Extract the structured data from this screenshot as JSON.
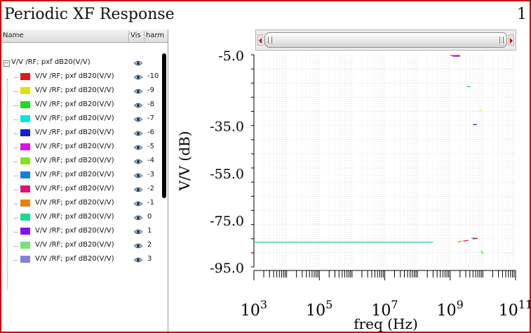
{
  "window": {
    "title": "Periodic XF Response",
    "page_number": "1"
  },
  "table": {
    "columns": [
      "Name",
      "Vis",
      "harm"
    ],
    "group_label": "V/V /RF; pxf dB20(V/V)",
    "visible_icon": "eye-icon",
    "rows": [
      {
        "label": "V/V /RF; pxf dB20(V/V)",
        "harm": "-10",
        "color": "#e8141c"
      },
      {
        "label": "V/V /RF; pxf dB20(V/V)",
        "harm": "-9",
        "color": "#e0e010"
      },
      {
        "label": "V/V /RF; pxf dB20(V/V)",
        "harm": "-8",
        "color": "#18e018"
      },
      {
        "label": "V/V /RF; pxf dB20(V/V)",
        "harm": "-7",
        "color": "#10e0e0"
      },
      {
        "label": "V/V /RF; pxf dB20(V/V)",
        "harm": "-6",
        "color": "#1020d8"
      },
      {
        "label": "V/V /RF; pxf dB20(V/V)",
        "harm": "-5",
        "color": "#e010e0"
      },
      {
        "label": "V/V /RF; pxf dB20(V/V)",
        "harm": "-4",
        "color": "#88e020"
      },
      {
        "label": "V/V /RF; pxf dB20(V/V)",
        "harm": "-3",
        "color": "#1080e0"
      },
      {
        "label": "V/V /RF; pxf dB20(V/V)",
        "harm": "-2",
        "color": "#e0107a"
      },
      {
        "label": "V/V /RF; pxf dB20(V/V)",
        "harm": "-1",
        "color": "#e88010"
      },
      {
        "label": "V/V /RF; pxf dB20(V/V)",
        "harm": "0",
        "color": "#10e088"
      },
      {
        "label": "V/V /RF; pxf dB20(V/V)",
        "harm": "1",
        "color": "#8a10f0"
      },
      {
        "label": "V/V /RF; pxf dB20(V/V)",
        "harm": "2",
        "color": "#78e078"
      },
      {
        "label": "V/V /RF; pxf dB20(V/V)",
        "harm": "3",
        "color": "#8080e0"
      }
    ]
  },
  "chart_data": {
    "type": "line",
    "xlabel": "freq (Hz)",
    "ylabel": "V/V (dB)",
    "xscale": "log",
    "xlim": [
      1000,
      100000000000
    ],
    "ylim": [
      -95,
      -5
    ],
    "yticks": [
      "-5.0",
      "-35.0",
      "-55.0",
      "-75.0",
      "-95.0"
    ],
    "ytick_values": [
      -5,
      -35,
      -55,
      -75,
      -95
    ],
    "xticks": [
      "10^3",
      "10^5",
      "10^7",
      "10^9",
      "10^11"
    ],
    "xtick_values": [
      1000,
      100000,
      10000000,
      1000000000,
      100000000000
    ],
    "grid": true,
    "series": [
      {
        "harm": "0",
        "color": "#2ed49a",
        "x": [
          1000,
          300000000
        ],
        "y": [
          -84.5,
          -84.5
        ]
      },
      {
        "harm": "-5",
        "color": "#e010e0",
        "x": [
          1000000000,
          2000000000
        ],
        "y": [
          -5.3,
          -5.3
        ]
      },
      {
        "harm": "1",
        "color": "#8a10f0",
        "x": [
          1200000000,
          2000000000
        ],
        "y": [
          -5.6,
          -5.6
        ]
      },
      {
        "harm": "-7",
        "color": "#10c0c0",
        "x": [
          3300000000,
          4200000000
        ],
        "y": [
          -18.5,
          -18.5
        ]
      },
      {
        "harm": "-9",
        "color": "#e0e010",
        "x": [
          8000000000,
          9000000000
        ],
        "y": [
          -28.6,
          -28.6
        ]
      },
      {
        "harm": "-6",
        "color": "#1020d8",
        "x": [
          5000000000,
          6500000000
        ],
        "y": [
          -34.6,
          -34.6
        ]
      },
      {
        "harm": "-1",
        "color": "#e88010",
        "x": [
          1700000000,
          2300000000
        ],
        "y": [
          -84.5,
          -84.0
        ]
      },
      {
        "harm": "-2",
        "color": "#e0107a",
        "x": [
          2500000000,
          3600000000
        ],
        "y": [
          -84.0,
          -83.7
        ]
      },
      {
        "harm": "-3",
        "color": "#1080e0",
        "x": [
          4500000000,
          6500000000
        ],
        "y": [
          -82.8,
          -82.8
        ]
      },
      {
        "harm": "-10",
        "color": "#e8141c",
        "x": [
          5000000000,
          7000000000
        ],
        "y": [
          -83.1,
          -82.9
        ]
      },
      {
        "harm": "-8",
        "color": "#18e018",
        "x": [
          9000000000,
          10000000000
        ],
        "y": [
          -88.0,
          -89.4
        ]
      }
    ]
  }
}
